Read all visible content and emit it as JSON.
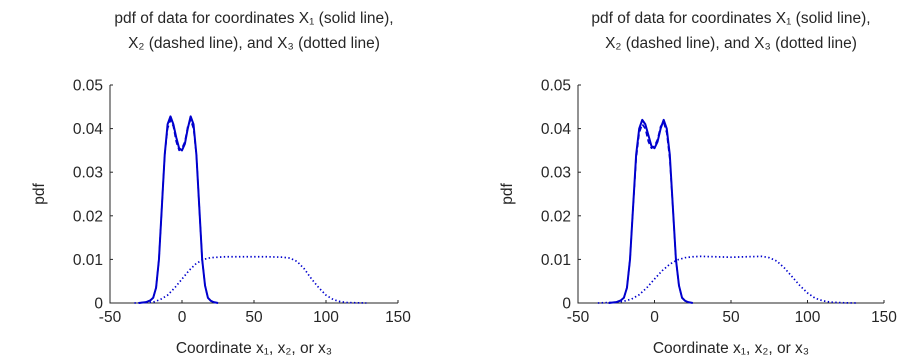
{
  "chart_data": [
    {
      "type": "line",
      "title": [
        "pdf of data  for coordinates X₁ (solid line),",
        "X₂ (dashed line), and X₃ (dotted line)"
      ],
      "xlabel": "Coordinate x₁, x₂, or x₃",
      "ylabel": "pdf",
      "xlim": [
        -50,
        150
      ],
      "ylim": [
        0,
        0.05
      ],
      "xticks": [
        -50,
        0,
        50,
        100,
        150
      ],
      "yticks": [
        0,
        0.01,
        0.02,
        0.03,
        0.04,
        0.05
      ],
      "xtick_labels": [
        "-50",
        "0",
        "50",
        "100",
        "150"
      ],
      "ytick_labels": [
        "0",
        "0.01",
        "0.02",
        "0.03",
        "0.04",
        "0.05"
      ],
      "grid": false,
      "series": [
        {
          "style": "solid",
          "color": "#0000CD",
          "x": [
            -30,
            -25,
            -22,
            -20,
            -18,
            -16,
            -14,
            -12,
            -10,
            -8,
            -6,
            -4,
            -2,
            0,
            2,
            4,
            6,
            8,
            10,
            12,
            14,
            16,
            18,
            20,
            22,
            25
          ],
          "y": [
            0,
            0.0002,
            0.0006,
            0.0012,
            0.0035,
            0.01,
            0.022,
            0.034,
            0.041,
            0.0428,
            0.041,
            0.038,
            0.0355,
            0.035,
            0.0365,
            0.04,
            0.0428,
            0.041,
            0.034,
            0.022,
            0.01,
            0.004,
            0.0012,
            0.0005,
            0.0002,
            0
          ]
        },
        {
          "style": "dashed",
          "color": "#0000CD",
          "x": [
            -30,
            -25,
            -22,
            -20,
            -18,
            -16,
            -14,
            -12,
            -10,
            -8,
            -6,
            -4,
            -2,
            0,
            2,
            4,
            6,
            8,
            10,
            12,
            14,
            16,
            18,
            20,
            22,
            25
          ],
          "y": [
            0,
            0.0002,
            0.0006,
            0.0012,
            0.0035,
            0.01,
            0.022,
            0.034,
            0.04,
            0.042,
            0.0405,
            0.037,
            0.035,
            0.0355,
            0.037,
            0.0405,
            0.042,
            0.04,
            0.034,
            0.022,
            0.01,
            0.004,
            0.0012,
            0.0005,
            0.0002,
            0
          ]
        },
        {
          "style": "dotted",
          "color": "#0000CD",
          "x": [
            -33,
            -25,
            -20,
            -15,
            -10,
            -5,
            0,
            5,
            10,
            15,
            20,
            25,
            30,
            40,
            50,
            60,
            70,
            75,
            80,
            85,
            90,
            95,
            100,
            105,
            110,
            115,
            120,
            128
          ],
          "y": [
            0,
            0.0001,
            0.0002,
            0.0008,
            0.0018,
            0.0035,
            0.0055,
            0.0075,
            0.0091,
            0.01,
            0.0104,
            0.0105,
            0.0106,
            0.0106,
            0.0106,
            0.0106,
            0.0105,
            0.0103,
            0.0095,
            0.0078,
            0.0055,
            0.0035,
            0.0018,
            0.0008,
            0.0003,
            0.0001,
            5e-05,
            0
          ]
        }
      ]
    },
    {
      "type": "line",
      "title": [
        "pdf of data  for coordinates X₁ (solid line),",
        "X₂ (dashed line), and X₃ (dotted line)"
      ],
      "xlabel": "Coordinate x₁, x₂, or x₃",
      "ylabel": "pdf",
      "xlim": [
        -50,
        150
      ],
      "ylim": [
        0,
        0.05
      ],
      "xticks": [
        -50,
        0,
        50,
        100,
        150
      ],
      "yticks": [
        0,
        0.01,
        0.02,
        0.03,
        0.04,
        0.05
      ],
      "xtick_labels": [
        "-50",
        "0",
        "50",
        "100",
        "150"
      ],
      "ytick_labels": [
        "0",
        "0.01",
        "0.02",
        "0.03",
        "0.04",
        "0.05"
      ],
      "grid": false,
      "series": [
        {
          "style": "solid",
          "color": "#0000CD",
          "x": [
            -30,
            -25,
            -22,
            -20,
            -18,
            -16,
            -14,
            -12,
            -10,
            -8,
            -6,
            -4,
            -2,
            0,
            2,
            4,
            6,
            8,
            10,
            12,
            14,
            16,
            18,
            20,
            22,
            25
          ],
          "y": [
            0,
            0.0002,
            0.0006,
            0.0012,
            0.0035,
            0.01,
            0.022,
            0.034,
            0.04,
            0.042,
            0.041,
            0.0385,
            0.036,
            0.0355,
            0.037,
            0.04,
            0.042,
            0.04,
            0.034,
            0.022,
            0.01,
            0.004,
            0.0012,
            0.0005,
            0.0002,
            0
          ]
        },
        {
          "style": "dashed",
          "color": "#0000CD",
          "x": [
            -30,
            -25,
            -22,
            -20,
            -18,
            -16,
            -14,
            -12,
            -10,
            -8,
            -6,
            -4,
            -2,
            0,
            2,
            4,
            6,
            8,
            10,
            12,
            14,
            16,
            18,
            20,
            22,
            25
          ],
          "y": [
            0,
            0.0002,
            0.0006,
            0.0012,
            0.0035,
            0.01,
            0.022,
            0.033,
            0.039,
            0.041,
            0.04,
            0.037,
            0.0355,
            0.036,
            0.0375,
            0.0405,
            0.0415,
            0.039,
            0.033,
            0.022,
            0.01,
            0.004,
            0.0012,
            0.0005,
            0.0002,
            0
          ]
        },
        {
          "style": "dotted",
          "color": "#0000CD",
          "x": [
            -37,
            -30,
            -25,
            -20,
            -15,
            -10,
            -5,
            0,
            5,
            10,
            15,
            20,
            25,
            30,
            40,
            50,
            60,
            70,
            75,
            80,
            85,
            90,
            95,
            100,
            105,
            110,
            115,
            120,
            125,
            133
          ],
          "y": [
            0,
            0.0001,
            0.0002,
            0.0004,
            0.0009,
            0.0019,
            0.0035,
            0.0055,
            0.0074,
            0.0089,
            0.0099,
            0.0104,
            0.0106,
            0.0107,
            0.0106,
            0.0105,
            0.0106,
            0.0107,
            0.0104,
            0.0096,
            0.008,
            0.006,
            0.004,
            0.0023,
            0.0011,
            0.0005,
            0.0002,
            0.0001,
            3e-05,
            0
          ]
        }
      ]
    }
  ]
}
